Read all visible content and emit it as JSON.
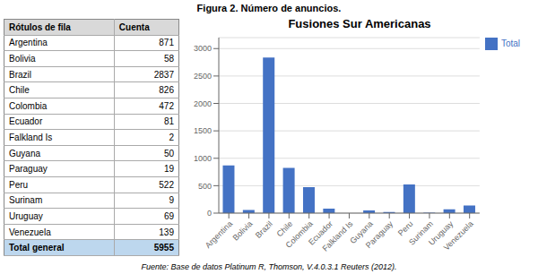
{
  "title": "Figura 2. Número de anuncios.",
  "footer": "Fuente: Base de datos Platinum R, Thomson, V.4.0.3.1 Reuters (2012).",
  "chart_data": [
    {
      "type": "table",
      "columns": [
        "Rótulos de fila",
        "Cuenta"
      ],
      "categories": [
        "Argentina",
        "Bolivia",
        "Brazil",
        "Chile",
        "Colombia",
        "Ecuador",
        "Falkland Is",
        "Guyana",
        "Paraguay",
        "Peru",
        "Surinam",
        "Uruguay",
        "Venezuela"
      ],
      "values": [
        871,
        58,
        2837,
        826,
        472,
        81,
        2,
        50,
        19,
        522,
        9,
        69,
        139
      ],
      "total_label": "Total general",
      "total": 5955
    },
    {
      "type": "bar",
      "title": "Fusiones Sur Americanas",
      "categories": [
        "Argentina",
        "Bolivia",
        "Brazil",
        "Chile",
        "Colombia",
        "Ecuador",
        "Falkland Is",
        "Guyana",
        "Paraguay",
        "Peru",
        "Surinam",
        "Uruguay",
        "Venezuela"
      ],
      "series": [
        {
          "name": "Total",
          "color": "#4472C4",
          "values": [
            871,
            58,
            2837,
            826,
            472,
            81,
            2,
            50,
            19,
            522,
            9,
            69,
            139
          ]
        }
      ],
      "ylim": [
        0,
        3200
      ],
      "yticks": [
        0,
        500,
        1000,
        1500,
        2000,
        2500,
        3000
      ],
      "grid": true,
      "legend": "upper right"
    }
  ]
}
